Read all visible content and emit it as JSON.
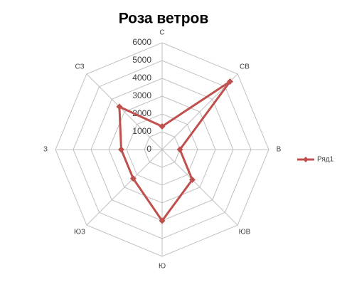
{
  "chart_data": {
    "type": "radar",
    "title": "Роза ветров",
    "categories": [
      "С",
      "СВ",
      "В",
      "ЮВ",
      "Ю",
      "ЮЗ",
      "З",
      "СЗ"
    ],
    "series": [
      {
        "name": "Ряд1",
        "color": "#c0504d",
        "values": [
          1300,
          5400,
          1000,
          2400,
          4000,
          2300,
          2300,
          3400
        ]
      }
    ],
    "ylim": [
      0,
      6000
    ],
    "yticks": [
      0,
      1000,
      2000,
      3000,
      4000,
      5000,
      6000
    ],
    "grid": true,
    "legend": "right"
  }
}
